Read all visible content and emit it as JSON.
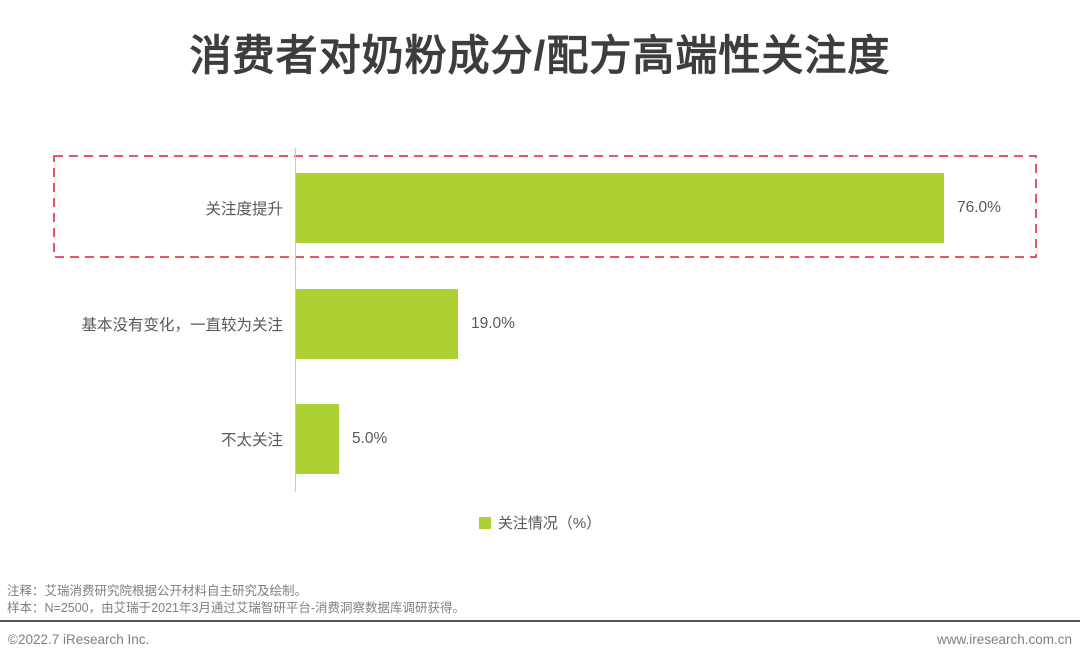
{
  "title": "消费者对奶粉成分/配方高端性关注度",
  "chart_data": {
    "type": "bar",
    "orientation": "horizontal",
    "categories": [
      "关注度提升",
      "基本没有变化，一直较为关注",
      "不太关注"
    ],
    "values": [
      76.0,
      19.0,
      5.0
    ],
    "value_labels": [
      "76.0%",
      "19.0%",
      "5.0%"
    ],
    "xlim": [
      0,
      87
    ],
    "grid": false,
    "legend_position": "bottom-center",
    "bar_color": "#add033",
    "highlight_color": "#ee5266",
    "highlighted_category": "关注度提升"
  },
  "legend": {
    "label": "关注情况（%）",
    "swatch_color": "#add033"
  },
  "footnotes": [
    "注释：艾瑞消费研究院根据公开材料自主研究及绘制。",
    "样本：N=2500，由艾瑞于2021年3月通过艾瑞智研平台-消费洞察数据库调研获得。"
  ],
  "footer": {
    "left": "©2022.7 iResearch Inc.",
    "right": "www.iresearch.com.cn"
  }
}
